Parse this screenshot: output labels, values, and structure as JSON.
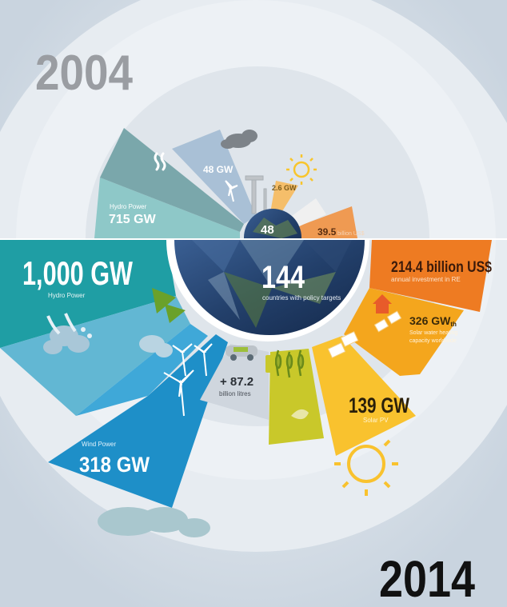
{
  "year_top": "2004",
  "year_bottom": "2014",
  "y2004": {
    "hydro_label": "Hydro Power",
    "hydro_value": "715 GW",
    "wind_value": "48 GW",
    "solar_pv_value": "2.6 GW",
    "center_value": "48",
    "investment_value": "39.5",
    "investment_unit": "billion US$"
  },
  "y2014": {
    "hydro_value": "1,000 GW",
    "hydro_label": "Hydro Power",
    "center_value": "144",
    "center_label": "countries with policy targets",
    "investment_value": "214.4 billion US$",
    "investment_label": "annual investment in RE",
    "solar_heat_value": "326 GW",
    "solar_heat_sub": "th",
    "solar_heat_label_1": "Solar water heating",
    "solar_heat_label_2": "capacity worldwide",
    "biofuel_value": "+ 87.2",
    "biofuel_unit": "billion litres",
    "solar_pv_value": "139 GW",
    "solar_pv_label": "Solar PV",
    "wind_label": "Wind Power",
    "wind_value": "318 GW"
  },
  "colors": {
    "hydro_2014": "#1f9ea4",
    "hydro_light": "#5db3cf",
    "wind_2014": "#1e8fc8",
    "investment_2014": "#ee7b22",
    "solar_heat_2014": "#f4a61d",
    "solar_pv_2014": "#f9c22e",
    "biofuel_2014": "#c9c82a",
    "hydro_2004": "#86bfc1",
    "wind_2004": "#a4bcd2"
  }
}
